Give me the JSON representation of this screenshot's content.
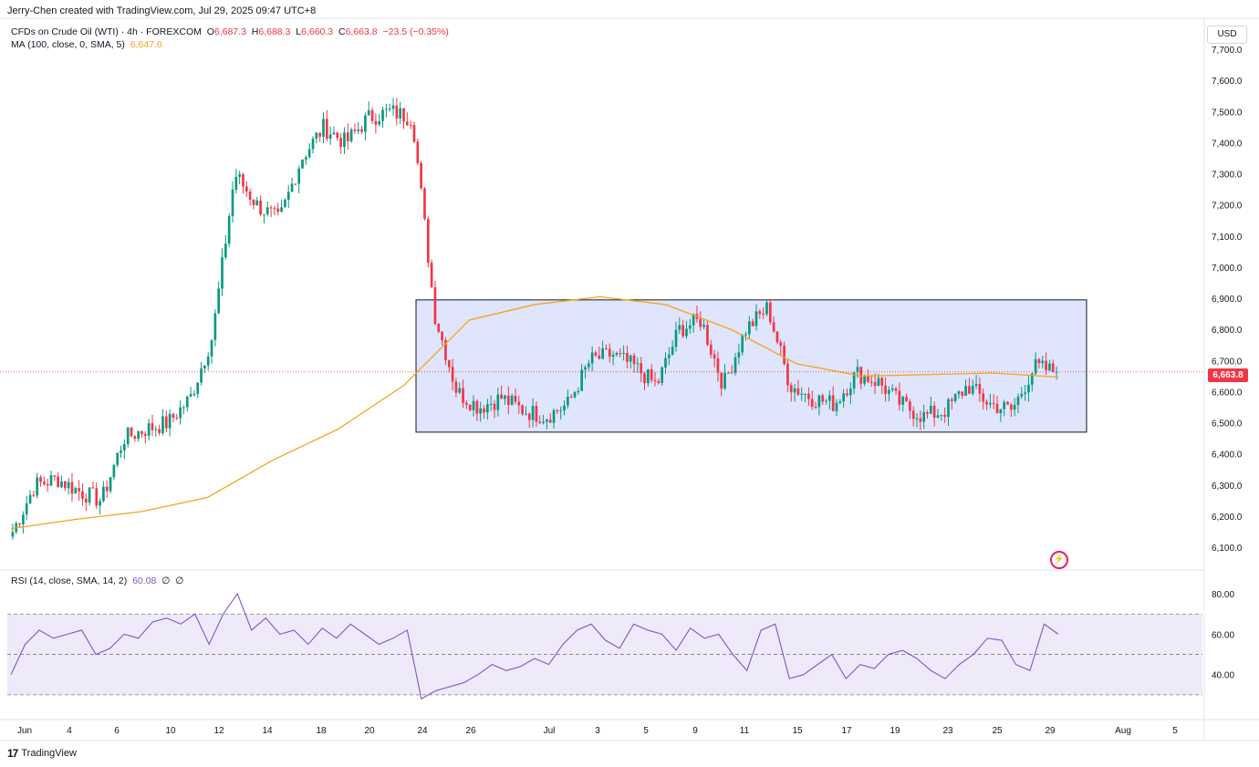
{
  "header": {
    "author_line": "Jerry-Chen created with TradingView.com, Jul 29, 2025 09:47 UTC+8"
  },
  "legend": {
    "symbol": "CFDs on Crude Oil (WTI) · 4h · FOREXCOM",
    "o_label": "O",
    "o": "6,687.3",
    "h_label": "H",
    "h": "6,688.3",
    "l_label": "L",
    "l": "6,660.3",
    "c_label": "C",
    "c": "6,663.8",
    "change": "−23.5 (−0.35%)",
    "ma_label": "MA (100, close, 0, SMA, 5)",
    "ma_value": "6,647.0",
    "rsi_label": "RSI (14, close, SMA, 14, 2)",
    "rsi_value": "60.08",
    "rsi_extra1": "∅",
    "rsi_extra2": "∅"
  },
  "currency": "USD",
  "last_price_tag": "6,663.8",
  "footer": {
    "brand": "TradingView"
  },
  "colors": {
    "up": "#089981",
    "down": "#f23645",
    "ma": "#f7a21b",
    "rsi": "#7e57c2",
    "box_fill": "#d6defb",
    "rsi_band": "#eeeafa"
  },
  "chart_data": [
    {
      "type": "candlestick",
      "title": "",
      "timeframe": "4h",
      "ylim": [
        6030,
        7800
      ],
      "y_ticks": [
        "6,100.0",
        "6,200.0",
        "6,300.0",
        "6,400.0",
        "6,500.0",
        "6,600.0",
        "6,700.0",
        "6,800.0",
        "6,900.0",
        "7,000.0",
        "7,100.0",
        "7,200.0",
        "7,300.0",
        "7,400.0",
        "7,500.0",
        "7,600.0",
        "7,700.0"
      ],
      "x_ticks": [
        "Jun",
        "4",
        "6",
        "10",
        "12",
        "14",
        "18",
        "20",
        "24",
        "26",
        "Jul",
        "3",
        "5",
        "9",
        "11",
        "15",
        "17",
        "19",
        "23",
        "25",
        "29",
        "Aug",
        "5"
      ],
      "close_series": [
        {
          "date": "Jun 2",
          "value": 6150
        },
        {
          "date": "Jun 3",
          "value": 6300
        },
        {
          "date": "Jun 4",
          "value": 6320
        },
        {
          "date": "Jun 5",
          "value": 6280
        },
        {
          "date": "Jun 6",
          "value": 6250
        },
        {
          "date": "Jun 9",
          "value": 6450
        },
        {
          "date": "Jun 10",
          "value": 6480
        },
        {
          "date": "Jun 11",
          "value": 6500
        },
        {
          "date": "Jun 11 (late)",
          "value": 6580
        },
        {
          "date": "Jun 12",
          "value": 6780
        },
        {
          "date": "Jun 13",
          "value": 7300
        },
        {
          "date": "Jun 13 (high)",
          "value": 7200
        },
        {
          "date": "Jun 16",
          "value": 7150
        },
        {
          "date": "Jun 17",
          "value": 7350
        },
        {
          "date": "Jun 18",
          "value": 7450
        },
        {
          "date": "Jun 19",
          "value": 7400
        },
        {
          "date": "Jun 20",
          "value": 7480
        },
        {
          "date": "Jun 20 (late)",
          "value": 7500
        },
        {
          "date": "Jun 23",
          "value": 7480
        },
        {
          "date": "Jun 23 (late)",
          "value": 6850
        },
        {
          "date": "Jun 24",
          "value": 6600
        },
        {
          "date": "Jun 25",
          "value": 6550
        },
        {
          "date": "Jun 26",
          "value": 6580
        },
        {
          "date": "Jun 27",
          "value": 6540
        },
        {
          "date": "Jun 30",
          "value": 6520
        },
        {
          "date": "Jul 1",
          "value": 6560
        },
        {
          "date": "Jul 2",
          "value": 6700
        },
        {
          "date": "Jul 3",
          "value": 6720
        },
        {
          "date": "Jul 4",
          "value": 6680
        },
        {
          "date": "Jul 7",
          "value": 6620
        },
        {
          "date": "Jul 8",
          "value": 6800
        },
        {
          "date": "Jul 9",
          "value": 6830
        },
        {
          "date": "Jul 10",
          "value": 6620
        },
        {
          "date": "Jul 11",
          "value": 6800
        },
        {
          "date": "Jul 13",
          "value": 6870
        },
        {
          "date": "Jul 14",
          "value": 6620
        },
        {
          "date": "Jul 15",
          "value": 6580
        },
        {
          "date": "Jul 16",
          "value": 6560
        },
        {
          "date": "Jul 17",
          "value": 6660
        },
        {
          "date": "Jul 18",
          "value": 6630
        },
        {
          "date": "Jul 21",
          "value": 6560
        },
        {
          "date": "Jul 22",
          "value": 6520
        },
        {
          "date": "Jul 23",
          "value": 6540
        },
        {
          "date": "Jul 24",
          "value": 6620
        },
        {
          "date": "Jul 25",
          "value": 6560
        },
        {
          "date": "Jul 25 (late)",
          "value": 6540
        },
        {
          "date": "Jul 28",
          "value": 6680
        },
        {
          "date": "Jul 29",
          "value": 6663.8
        }
      ],
      "ma100": [
        {
          "date": "Jun 2",
          "value": 6160
        },
        {
          "date": "Jun 6",
          "value": 6190
        },
        {
          "date": "Jun 10",
          "value": 6215
        },
        {
          "date": "Jun 12",
          "value": 6260
        },
        {
          "date": "Jun 16",
          "value": 6380
        },
        {
          "date": "Jun 18",
          "value": 6480
        },
        {
          "date": "Jun 20",
          "value": 6620
        },
        {
          "date": "Jun 24",
          "value": 6830
        },
        {
          "date": "Jun 30",
          "value": 6880
        },
        {
          "date": "Jul 4",
          "value": 6905
        },
        {
          "date": "Jul 8",
          "value": 6880
        },
        {
          "date": "Jul 11",
          "value": 6800
        },
        {
          "date": "Jul 15",
          "value": 6690
        },
        {
          "date": "Jul 18",
          "value": 6650
        },
        {
          "date": "Jul 23",
          "value": 6655
        },
        {
          "date": "Jul 25",
          "value": 6660
        },
        {
          "date": "Jul 29",
          "value": 6647
        }
      ],
      "consolidation_box": {
        "from": "Jun 23",
        "to": "Jul 29",
        "low": 6470,
        "high": 6895
      },
      "last_price": 6663.8
    },
    {
      "type": "line",
      "title": "",
      "ylim": [
        20,
        85
      ],
      "y_ticks": [
        "40.00",
        "60.00",
        "80.00"
      ],
      "bands": [
        30,
        50,
        70
      ],
      "series": [
        {
          "values": [
            40,
            55,
            62,
            58,
            60,
            62,
            50,
            53,
            60,
            58,
            66,
            68,
            65,
            70,
            55,
            70,
            80,
            62,
            68,
            60,
            62,
            55,
            63,
            58,
            65,
            60,
            55,
            58,
            62,
            28,
            32,
            34,
            36,
            40,
            45,
            42,
            44,
            48,
            45,
            55,
            62,
            65,
            57,
            53,
            65,
            62,
            60,
            52,
            63,
            58,
            60,
            50,
            42,
            62,
            65,
            38,
            40,
            45,
            50,
            38,
            45,
            43,
            50,
            52,
            48,
            42,
            38,
            45,
            50,
            58,
            57,
            45,
            42,
            65,
            60
          ]
        }
      ]
    }
  ]
}
